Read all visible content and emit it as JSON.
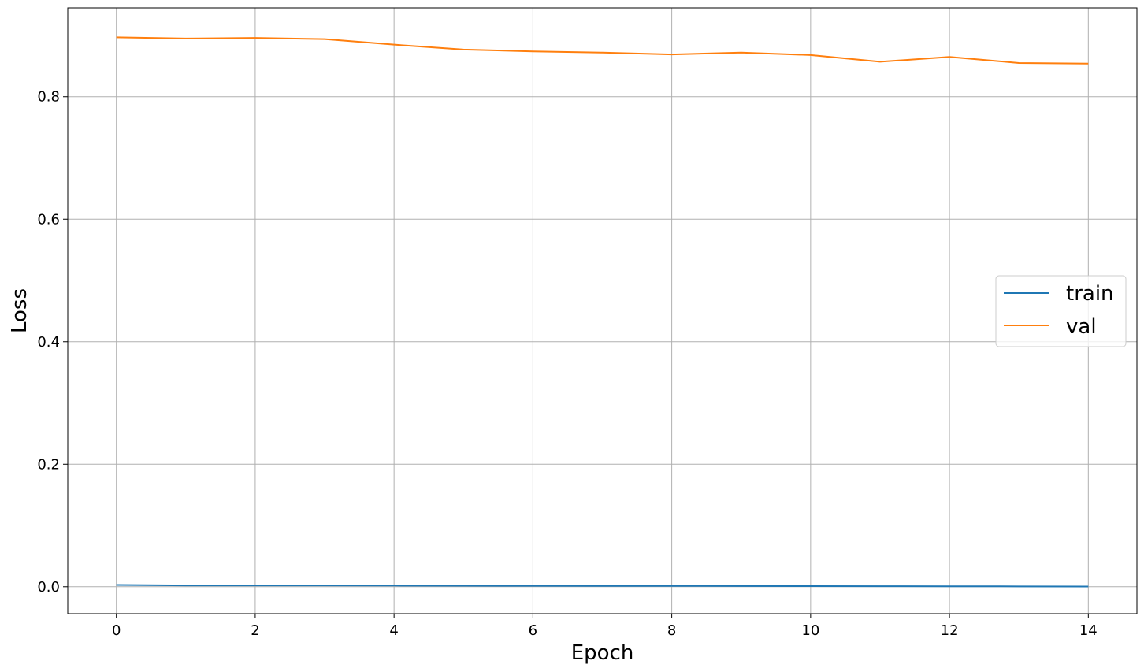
{
  "chart_data": {
    "type": "line",
    "title": "",
    "xlabel": "Epoch",
    "ylabel": "Loss",
    "xlim": [
      -0.7,
      14.7
    ],
    "ylim": [
      -0.044,
      0.945
    ],
    "x_ticks": [
      0,
      2,
      4,
      6,
      8,
      10,
      12,
      14
    ],
    "x_tick_labels": [
      "0",
      "2",
      "4",
      "6",
      "8",
      "10",
      "12",
      "14"
    ],
    "y_ticks": [
      0.0,
      0.2,
      0.4,
      0.6,
      0.8
    ],
    "y_tick_labels": [
      "0.0",
      "0.2",
      "0.4",
      "0.6",
      "0.8"
    ],
    "grid": true,
    "legend_position": "center-right",
    "x": [
      0,
      1,
      2,
      3,
      4,
      5,
      6,
      7,
      8,
      9,
      10,
      11,
      12,
      13,
      14
    ],
    "series": [
      {
        "name": "train",
        "color": "#1f77b4",
        "values": [
          0.003,
          0.0022,
          0.0022,
          0.0021,
          0.0019,
          0.0016,
          0.0015,
          0.0014,
          0.0013,
          0.0012,
          0.001,
          0.0009,
          0.0007,
          0.0006,
          0.0004
        ]
      },
      {
        "name": "val",
        "color": "#ff7f0e",
        "values": [
          0.897,
          0.895,
          0.896,
          0.894,
          0.885,
          0.877,
          0.874,
          0.872,
          0.869,
          0.872,
          0.868,
          0.857,
          0.865,
          0.855,
          0.854
        ]
      }
    ]
  }
}
